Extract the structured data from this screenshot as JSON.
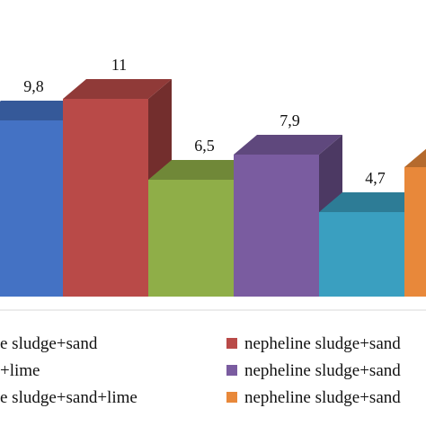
{
  "chart_data": {
    "type": "bar",
    "style": "3d",
    "categories": [
      "nepheline sludge+sand",
      "nepheline sludge+sand",
      "nepheline sludge+lime",
      "nepheline sludge+sand",
      "nepheline sludge+sand+lime",
      "nepheline sludge+sand"
    ],
    "values": [
      9.8,
      11,
      6.5,
      7.9,
      4.7,
      7.2
    ],
    "value_labels": [
      "9,8",
      "11",
      "6,5",
      "7,9",
      "4,7",
      ""
    ],
    "colors": [
      "#4472C4",
      "#B94A48",
      "#8FAE48",
      "#7A5CA0",
      "#3A9FC0",
      "#E8883A"
    ],
    "ylim": [
      0,
      12
    ],
    "grid": false,
    "legend_position": "bottom",
    "legend": [
      {
        "label": "e sludge+sand",
        "color": "#4472C4"
      },
      {
        "label": "nepheline sludge+sand",
        "color": "#B94A48"
      },
      {
        "label": "+lime",
        "color": "#8FAE48"
      },
      {
        "label": "nepheline sludge+sand",
        "color": "#7A5CA0"
      },
      {
        "label": "e sludge+sand+lime",
        "color": "#3A9FC0"
      },
      {
        "label": "nepheline sludge+sand",
        "color": "#E8883A"
      }
    ]
  }
}
